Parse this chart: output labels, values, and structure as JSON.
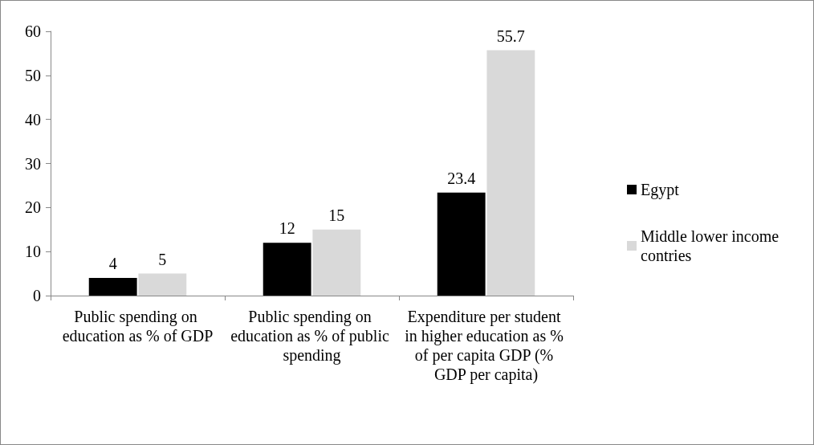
{
  "chart_data": {
    "type": "bar",
    "categories": [
      "Public spending on education as % of GDP",
      "Public spending on education as % of public spending",
      "Expenditure per student in higher education as % of per capita GDP (% GDP per capita)"
    ],
    "series": [
      {
        "name": "Egypt",
        "color": "#000000",
        "values": [
          4,
          12,
          23.4
        ]
      },
      {
        "name": "Middle lower income contries",
        "color": "#d9d9d9",
        "values": [
          5,
          15,
          55.7
        ]
      }
    ],
    "ylim": [
      0,
      60
    ],
    "yticks": [
      0,
      10,
      20,
      30,
      40,
      50,
      60
    ],
    "grid": false,
    "legend": "right",
    "data_labels": true
  }
}
